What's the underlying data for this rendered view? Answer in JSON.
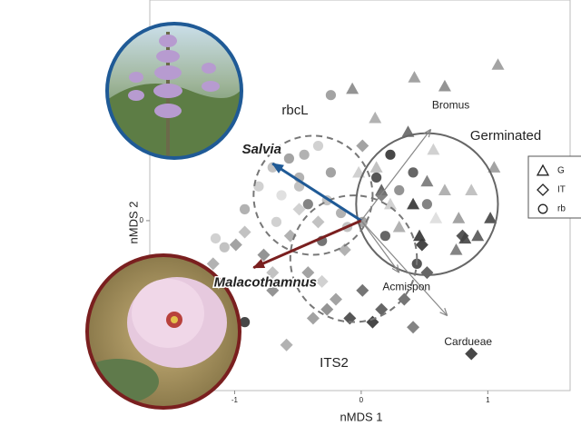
{
  "chart_data": {
    "type": "scatter",
    "x_label": "nMDS 1",
    "y_label": "nMDS 2",
    "xlim": [
      -1.67,
      1.65
    ],
    "ylim": [
      -1.34,
      1.74
    ],
    "xticks": [
      -1,
      0,
      1
    ],
    "yticks": [
      0
    ],
    "legend_position": "right",
    "series": [
      {
        "name": "G",
        "marker": "triangle",
        "color": "#777777",
        "x": [
          0.42,
          0.66,
          1.08,
          0.11,
          0.57,
          1.02,
          0.87,
          0.77,
          0.92,
          0.41,
          0.52,
          0.23,
          0.66,
          1.05,
          0.12,
          0.37,
          -0.07,
          0.82,
          0.46,
          0.75,
          0.3,
          -0.02,
          0.16,
          0.59
        ],
        "values": [
          1.13,
          1.06,
          1.23,
          0.81,
          0.56,
          0.02,
          0.24,
          0.02,
          -0.12,
          0.13,
          0.31,
          0.13,
          0.24,
          0.42,
          0.42,
          0.7,
          1.04,
          -0.14,
          -0.12,
          -0.23,
          -0.05,
          0.38,
          0.24,
          0.02
        ],
        "colors": [
          "#999999",
          "#888888",
          "#999999",
          "#aaaaaa",
          "#cccccc",
          "#444444",
          "#bbbbbb",
          "#999999",
          "#555555",
          "#333333",
          "#777777",
          "#cccccc",
          "#aaaaaa",
          "#999999",
          "#bbbbbb",
          "#666666",
          "#888888",
          "#444444",
          "#333333",
          "#777777",
          "#aaaaaa",
          "#cccccc",
          "#555555",
          "#dddddd"
        ]
      },
      {
        "name": "IT",
        "marker": "diamond",
        "color": "#777777",
        "x": [
          -1.17,
          -0.99,
          -0.92,
          -0.77,
          -0.56,
          -0.42,
          -0.31,
          -0.7,
          -0.59,
          -0.38,
          -0.09,
          0.09,
          0.16,
          0.34,
          -0.2,
          -0.34,
          -0.49,
          0.01,
          0.16,
          -0.13,
          0.48,
          0.8,
          0.52,
          0.87,
          0.41,
          -0.27,
          0.01,
          -0.7
        ],
        "values": [
          -0.34,
          -0.19,
          -0.09,
          -0.27,
          -0.12,
          -0.41,
          -0.48,
          -0.55,
          -0.98,
          -0.77,
          -0.77,
          -0.8,
          -0.7,
          -0.62,
          -0.62,
          -0.01,
          0.09,
          0.59,
          0.2,
          -0.23,
          -0.19,
          -0.12,
          -0.41,
          -1.05,
          -0.84,
          -0.7,
          -0.55,
          -0.41
        ],
        "colors": [
          "#aaaaaa",
          "#999999",
          "#bbbbbb",
          "#888888",
          "#aaaaaa",
          "#999999",
          "#cccccc",
          "#888888",
          "#aaaaaa",
          "#999999",
          "#444444",
          "#333333",
          "#555555",
          "#666666",
          "#999999",
          "#bbbbbb",
          "#cccccc",
          "#999999",
          "#777777",
          "#aaaaaa",
          "#333333",
          "#444444",
          "#555555",
          "#333333",
          "#777777",
          "#888888",
          "#666666",
          "#bbbbbb"
        ]
      },
      {
        "name": "rb",
        "marker": "circle",
        "color": "#777777",
        "x": [
          -1.15,
          -1.08,
          -0.92,
          -0.81,
          -0.7,
          -0.57,
          -0.45,
          -0.34,
          -0.24,
          -0.49,
          -0.63,
          -0.42,
          -0.27,
          -0.16,
          -0.31,
          -0.11,
          0.01,
          0.12,
          0.23,
          0.41,
          0.52,
          0.3,
          0.19,
          0.44,
          -0.24,
          -0.92,
          -0.49,
          -0.67
        ],
        "values": [
          -0.14,
          -0.21,
          0.09,
          0.27,
          0.42,
          0.49,
          0.52,
          0.59,
          0.38,
          0.27,
          0.2,
          0.13,
          0.16,
          0.06,
          -0.16,
          -0.05,
          -0.01,
          0.34,
          0.52,
          0.38,
          0.13,
          0.24,
          -0.12,
          -0.34,
          0.99,
          -0.8,
          0.34,
          -0.01
        ],
        "colors": [
          "#cccccc",
          "#bbbbbb",
          "#aaaaaa",
          "#cccccc",
          "#bbbbbb",
          "#999999",
          "#aaaaaa",
          "#cccccc",
          "#999999",
          "#bbbbbb",
          "#dddddd",
          "#777777",
          "#bbbbbb",
          "#aaaaaa",
          "#666666",
          "#bbbbbb",
          "#999999",
          "#444444",
          "#333333",
          "#555555",
          "#777777",
          "#888888",
          "#555555",
          "#444444",
          "#999999",
          "#333333",
          "#aaaaaa",
          "#cccccc"
        ]
      }
    ],
    "ellipses": [
      {
        "label": "Germinated",
        "cx": 0.52,
        "cy": 0.13,
        "r": 0.56,
        "dashed": false
      },
      {
        "label": "rbcL",
        "cx": -0.38,
        "cy": 0.2,
        "r": 0.47,
        "dashed": true
      },
      {
        "label": "ITS2",
        "cx": -0.06,
        "cy": -0.3,
        "r": 0.5,
        "dashed": true
      }
    ],
    "vectors": [
      {
        "label": "Bromus",
        "x": 0.55,
        "y": 0.72,
        "color": "#888888"
      },
      {
        "label": "Salvia",
        "x": -0.7,
        "y": 0.45,
        "color": "#1f5a96"
      },
      {
        "label": "Malacothamnus",
        "x": -0.85,
        "y": -0.37,
        "color": "#7a1f1f"
      },
      {
        "label": "Acmispon",
        "x": 0.3,
        "y": -0.41,
        "color": "#888888"
      },
      {
        "label": "Cardueae",
        "x": 0.68,
        "y": -0.75,
        "color": "#888888"
      }
    ]
  }
}
